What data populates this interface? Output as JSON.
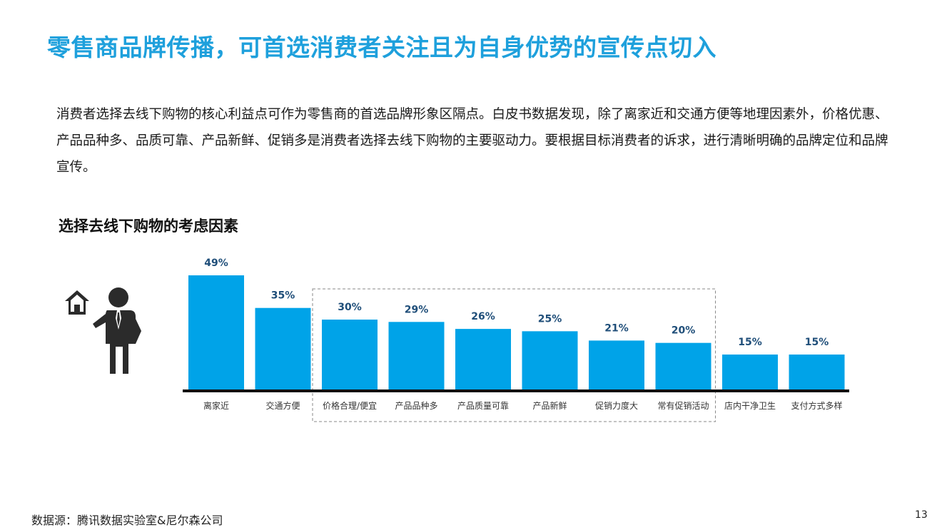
{
  "slide": {
    "title": "零售商品牌传播，可首选消费者关注且为自身优势的宣传点切入",
    "body": "消费者选择去线下购物的核心利益点可作为零售商的首选品牌形象区隔点。白皮书数据发现，除了离家近和交通方便等地理因素外，价格优惠、产品品种多、品质可靠、产品新鲜、促销多是消费者选择去线下购物的主要驱动力。要根据目标消费者的诉求，进行清晰明确的品牌定位和品牌宣传。",
    "source": "数据源：腾讯数据实验室&尼尔森公司",
    "page_number": "13"
  },
  "icons": {
    "house": "house-icon",
    "person": "businessman-icon"
  },
  "colors": {
    "accent": "#1ea0dc",
    "bar": "#00a3e8",
    "axis": "#111111",
    "label": "#1f4e79",
    "box": "#888888"
  },
  "chart_data": {
    "type": "bar",
    "title": "选择去线下购物的考虑因素",
    "categories": [
      "离家近",
      "交通方便",
      "价格合理/便宜",
      "产品品种多",
      "产品质量可靠",
      "产品新鲜",
      "促销力度大",
      "常有促销活动",
      "店内干净卫生",
      "支付方式多样"
    ],
    "values": [
      49,
      35,
      30,
      29,
      26,
      25,
      21,
      20,
      15,
      15
    ],
    "data_labels": [
      "49%",
      "35%",
      "30%",
      "29%",
      "26%",
      "25%",
      "21%",
      "20%",
      "15%",
      "15%"
    ],
    "unit": "%",
    "ylim": [
      0,
      49
    ],
    "grid": false,
    "highlight_box": {
      "from_category": "价格合理/便宜",
      "to_category": "常有促销活动",
      "style": "dashed"
    }
  }
}
